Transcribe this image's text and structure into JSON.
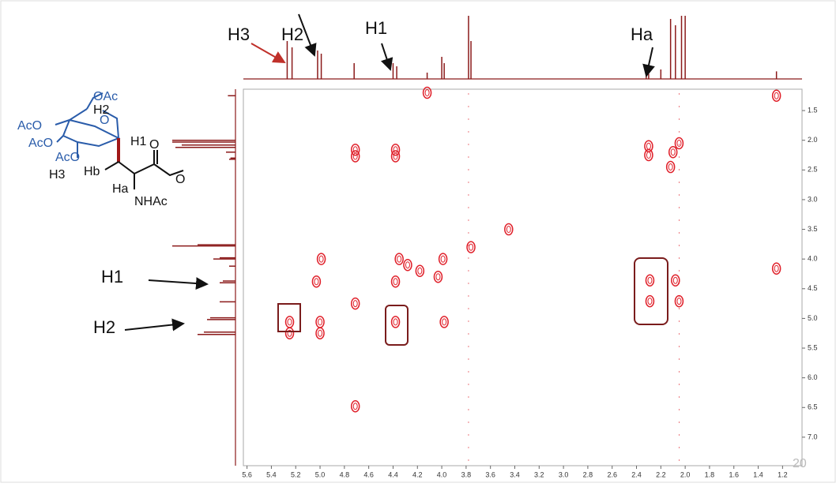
{
  "chart_data": {
    "type": "scatter",
    "color": "#e0202a",
    "x": [
      4.12,
      1.25,
      2.05,
      2.1,
      2.3,
      2.3,
      2.12,
      4.71,
      4.71,
      4.38,
      4.38,
      3.76,
      3.45,
      4.99,
      4.35,
      4.28,
      4.18,
      3.99,
      4.03,
      5.03,
      4.38,
      4.71,
      5.25,
      5.25,
      5.0,
      5.0,
      4.38,
      3.98,
      2.29,
      2.29,
      2.08,
      2.05,
      4.71,
      1.25
    ],
    "values": [
      1.2,
      1.25,
      2.05,
      2.2,
      2.1,
      2.25,
      2.45,
      2.16,
      2.27,
      2.16,
      2.27,
      3.8,
      3.5,
      4.0,
      4.0,
      4.1,
      4.2,
      4.0,
      4.3,
      4.38,
      4.38,
      4.75,
      5.06,
      5.25,
      5.06,
      5.25,
      5.06,
      5.06,
      4.36,
      4.71,
      4.36,
      4.71,
      6.48,
      4.16
    ],
    "xlim": [
      5.63,
      1.04
    ],
    "ylim": [
      1.14,
      7.48
    ],
    "xticks": [
      5.6,
      5.4,
      5.2,
      {
        "value": 5.0,
        "label": "5.0"
      },
      4.8,
      4.6,
      4.4,
      4.2,
      {
        "value": 4.0,
        "label": "4.0"
      },
      3.8,
      3.6,
      3.4,
      3.2,
      {
        "value": 3.0,
        "label": "3.0"
      },
      2.8,
      2.6,
      2.4,
      2.2,
      {
        "value": 2.0,
        "label": "2.0"
      },
      1.8,
      1.6,
      1.4,
      1.2
    ],
    "yticks": [
      1.5,
      {
        "value": 2.0,
        "label": "2.0"
      },
      2.5,
      {
        "value": 3.0,
        "label": "3.0"
      },
      3.5,
      {
        "value": 4.0,
        "label": "4.0"
      },
      4.5,
      {
        "value": 5.0,
        "label": "5.0"
      },
      5.5,
      {
        "value": 6.0,
        "label": "6.0"
      },
      6.5,
      {
        "value": 7.0,
        "label": "7.0"
      }
    ],
    "projection": {
      "color": "#8b1a1a",
      "x": [
        5.27,
        5.23,
        5.02,
        4.99,
        4.72,
        4.4,
        4.37,
        4.12,
        4.0,
        3.98,
        3.78,
        3.76,
        2.32,
        2.3,
        2.2,
        2.12,
        2.08,
        2.03,
        2.0,
        1.25
      ],
      "values": [
        60,
        50,
        45,
        40,
        25,
        25,
        20,
        10,
        35,
        25,
        100,
        60,
        10,
        8,
        15,
        95,
        85,
        100,
        100,
        12
      ]
    },
    "annotations": {
      "top": [
        "H3",
        "H2",
        "H1",
        "Ha"
      ],
      "left": [
        "H1",
        "H2"
      ],
      "corner": "20"
    }
  },
  "structure": {
    "labels": [
      "OAc",
      "AcO",
      "AcO",
      "AcO",
      "H2",
      "O",
      "H1",
      "O",
      "H3",
      "Hb",
      "Ha",
      "NHAc",
      "O"
    ]
  }
}
